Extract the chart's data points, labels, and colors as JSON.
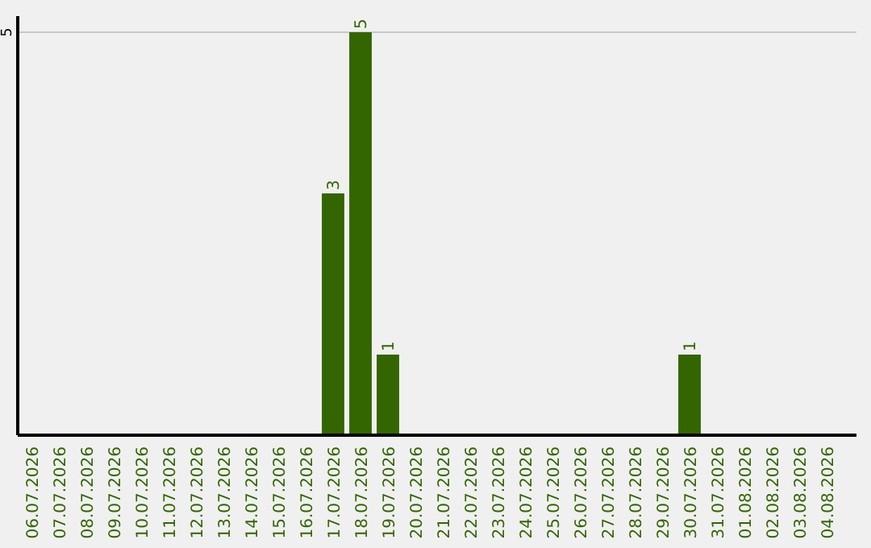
{
  "chart_data": {
    "type": "bar",
    "categories": [
      "06.07.2026",
      "07.07.2026",
      "08.07.2026",
      "09.07.2026",
      "10.07.2026",
      "11.07.2026",
      "12.07.2026",
      "13.07.2026",
      "14.07.2026",
      "15.07.2026",
      "16.07.2026",
      "17.07.2026",
      "18.07.2026",
      "19.07.2026",
      "20.07.2026",
      "21.07.2026",
      "22.07.2026",
      "23.07.2026",
      "24.07.2026",
      "25.07.2026",
      "26.07.2026",
      "27.07.2026",
      "28.07.2026",
      "29.07.2026",
      "30.07.2026",
      "31.07.2026",
      "01.08.2026",
      "02.08.2026",
      "03.08.2026",
      "04.08.2026"
    ],
    "values": [
      0,
      0,
      0,
      0,
      0,
      0,
      0,
      0,
      0,
      0,
      0,
      3,
      5,
      1,
      0,
      0,
      0,
      0,
      0,
      0,
      0,
      0,
      0,
      0,
      1,
      0,
      0,
      0,
      0,
      0
    ],
    "value_labels": [
      null,
      null,
      null,
      null,
      null,
      null,
      null,
      null,
      null,
      null,
      null,
      "3",
      "5",
      "1",
      null,
      null,
      null,
      null,
      null,
      null,
      null,
      null,
      null,
      null,
      "1",
      null,
      null,
      null,
      null,
      null
    ],
    "color": "#336600",
    "ylim": [
      0,
      5.2
    ],
    "yticks": [
      5
    ],
    "grid": "y"
  }
}
